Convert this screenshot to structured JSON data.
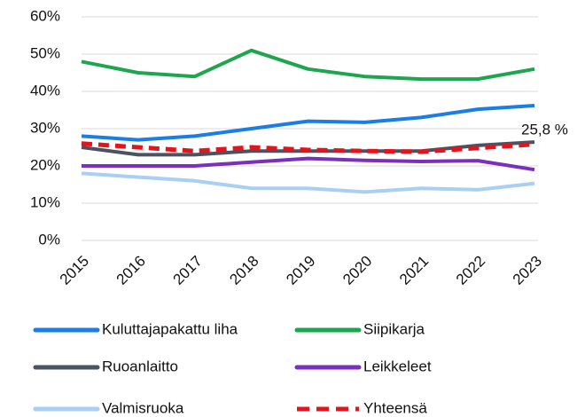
{
  "chart_data": {
    "type": "line",
    "categories": [
      "2015",
      "2016",
      "2017",
      "2018",
      "2019",
      "2020",
      "2021",
      "2022",
      "2023"
    ],
    "series": [
      {
        "name": "Kuluttajapakattu liha",
        "color": "#1a7ee6",
        "values": [
          28,
          27,
          28,
          30,
          32,
          31.7,
          33,
          35.2,
          36.2
        ]
      },
      {
        "name": "Siipikarja",
        "color": "#1ea64f",
        "values": [
          48,
          45,
          44,
          51,
          46,
          44,
          43.3,
          43.3,
          46
        ]
      },
      {
        "name": "Ruoanlaitto",
        "color": "#4b5361",
        "values": [
          25,
          23,
          23,
          24,
          24,
          24,
          24,
          25.5,
          26.4
        ]
      },
      {
        "name": "Leikkeleet",
        "color": "#7a2fbd",
        "values": [
          20,
          20,
          20,
          21,
          22,
          21.5,
          21.2,
          21.4,
          19
        ]
      },
      {
        "name": "Valmisruoka",
        "color": "#a9cff5",
        "values": [
          18,
          17,
          16,
          14,
          14,
          13,
          14,
          13.6,
          15.3
        ]
      },
      {
        "name": "Yhteensä",
        "color": "#e5141c",
        "dashed": true,
        "values": [
          26,
          25,
          24,
          25,
          24.3,
          24,
          23.8,
          24.8,
          25.8
        ]
      }
    ],
    "annotations": [
      "25,8 %"
    ],
    "ylim": [
      0,
      60
    ],
    "yticks": [
      {
        "value": 0,
        "label": "0%"
      },
      {
        "value": 10,
        "label": "10%"
      },
      {
        "value": 20,
        "label": "20%"
      },
      {
        "value": 30,
        "label": "30%"
      },
      {
        "value": 40,
        "label": "40%"
      },
      {
        "value": 50,
        "label": "50%"
      },
      {
        "value": 60,
        "label": "60%"
      }
    ],
    "grid": true
  }
}
